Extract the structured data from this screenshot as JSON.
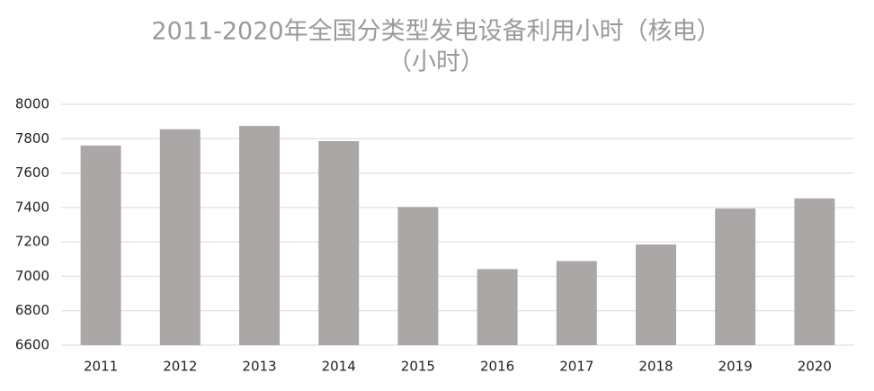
{
  "chart_data": {
    "type": "bar",
    "title": "2011-2020年全国分类型发电设备利用小时（核电）",
    "subtitle": "（小时）",
    "categories": [
      "2011",
      "2012",
      "2013",
      "2014",
      "2015",
      "2016",
      "2017",
      "2018",
      "2019",
      "2020"
    ],
    "values": [
      7760,
      7855,
      7874,
      7786,
      7403,
      7042,
      7089,
      7185,
      7394,
      7453
    ],
    "color": "#aba7a7",
    "ylim": [
      6600,
      8000
    ],
    "yticks": [
      6600,
      6800,
      7000,
      7200,
      7400,
      7600,
      7800,
      8000
    ],
    "grid": true
  }
}
